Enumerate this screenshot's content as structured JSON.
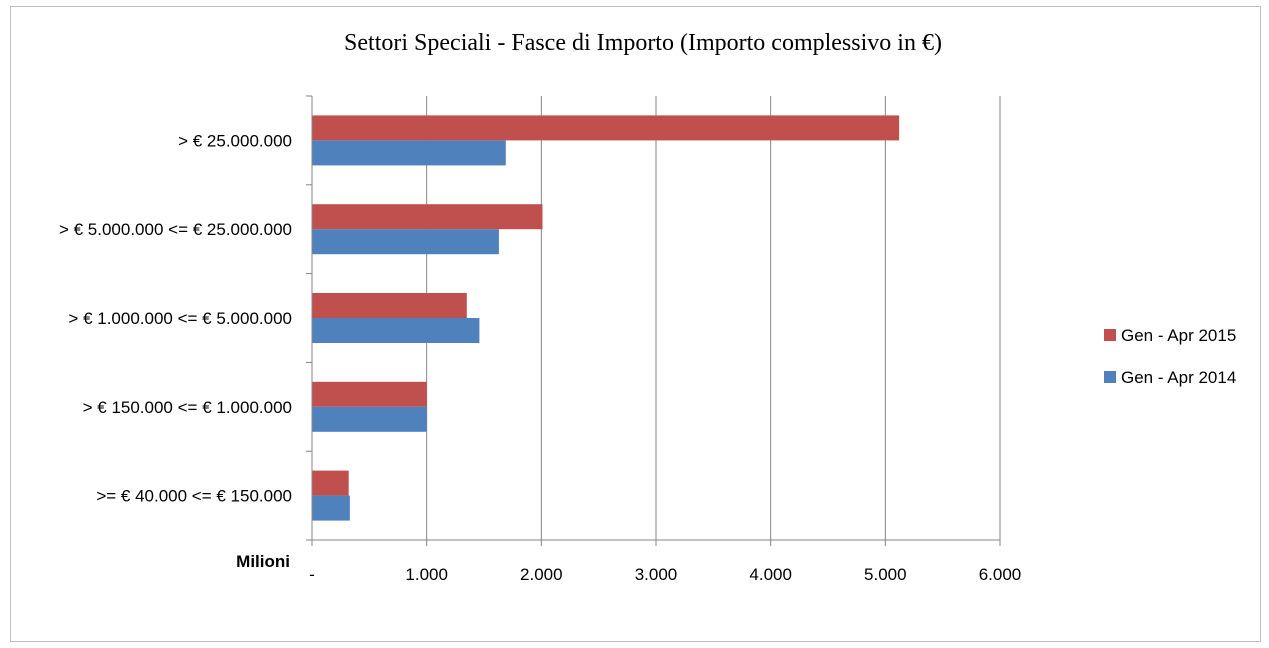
{
  "chart_data": {
    "type": "bar",
    "orientation": "horizontal",
    "title": "Settori Speciali - Fasce di Importo (Importo complessivo in €)",
    "unit_label": "Milioni",
    "categories": [
      "> € 25.000.000",
      "> € 5.000.000 <= € 25.000.000",
      "> € 1.000.000 <= € 5.000.000",
      "> € 150.000 <= € 1.000.000",
      ">= € 40.000 <= € 150.000"
    ],
    "series": [
      {
        "name": "Gen - Apr 2015",
        "color": "#c0504d",
        "values": [
          5120,
          2010,
          1350,
          1000,
          320
        ]
      },
      {
        "name": "Gen - Apr 2014",
        "color": "#4f81bd",
        "values": [
          1690,
          1630,
          1460,
          1000,
          330
        ]
      }
    ],
    "xlim": [
      0,
      6000
    ],
    "x_ticks": [
      "-",
      "1.000",
      "2.000",
      "3.000",
      "4.000",
      "5.000",
      "6.000"
    ],
    "grid": true,
    "legend_position": "right"
  }
}
